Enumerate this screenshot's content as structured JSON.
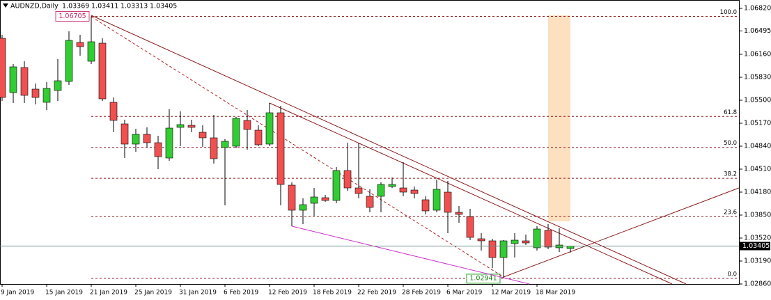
{
  "chart_data": {
    "type": "candlestick",
    "title": "AUDNZD,Daily",
    "categories": [
      "9 Jan 2019",
      null,
      null,
      null,
      "15 Jan 2019",
      null,
      null,
      null,
      "21 Jan 2019",
      null,
      null,
      null,
      "25 Jan 2019",
      null,
      null,
      null,
      "31 Jan 2019",
      null,
      null,
      null,
      "6 Feb 2019",
      null,
      null,
      null,
      "12 Feb 2019",
      null,
      null,
      null,
      "18 Feb 2019",
      null,
      null,
      null,
      "22 Feb 2019",
      null,
      null,
      null,
      "28 Feb 2019",
      null,
      null,
      null,
      "6 Mar 2019",
      null,
      null,
      null,
      "12 Mar 2019",
      null,
      null,
      null,
      "18 Mar 2019",
      null,
      null,
      null
    ],
    "open": [
      1.0639,
      1.0561,
      1.0597,
      1.0566,
      1.0547,
      1.0564,
      1.0577,
      1.0633,
      1.0606,
      1.0632,
      1.0547,
      1.0516,
      1.0487,
      1.0501,
      1.0489,
      1.0467,
      1.0511,
      1.0514,
      1.0504,
      1.0496,
      1.0482,
      1.0484,
      1.0521,
      1.0507,
      1.0487,
      1.0532,
      1.0428,
      1.0392,
      1.0402,
      1.041,
      1.0406,
      1.0449,
      1.0424,
      1.0412,
      1.0412,
      1.0426,
      1.0424,
      1.0421,
      1.0407,
      1.0392,
      1.0418,
      1.0389,
      1.0383,
      1.0351,
      1.0348,
      1.0324,
      1.0344,
      1.0348,
      1.0338,
      1.0363,
      1.0338,
      1.03369
    ],
    "high": [
      1.0644,
      1.0602,
      1.0606,
      1.0574,
      1.0576,
      1.0609,
      1.0649,
      1.0644,
      1.06705,
      1.0639,
      1.0554,
      1.0522,
      1.0509,
      1.0511,
      1.0499,
      1.0537,
      1.0534,
      1.0522,
      1.0514,
      1.0529,
      1.0494,
      1.0526,
      1.0536,
      1.0514,
      1.0546,
      1.0542,
      1.0432,
      1.0409,
      1.0424,
      1.0414,
      1.0454,
      1.0489,
      1.0489,
      1.0422,
      1.0432,
      1.0439,
      1.0461,
      1.0426,
      1.0412,
      1.0436,
      1.0434,
      1.0398,
      1.0394,
      1.0359,
      1.0351,
      1.0349,
      1.0359,
      1.0357,
      1.0369,
      1.0372,
      1.0366,
      1.03411
    ],
    "low": [
      1.0549,
      1.0546,
      1.0546,
      1.0544,
      1.0536,
      1.0549,
      1.0572,
      1.0614,
      1.0602,
      1.0549,
      1.0504,
      1.0467,
      1.0476,
      1.0482,
      1.0451,
      1.0463,
      1.0484,
      1.0504,
      1.0483,
      1.0459,
      1.0399,
      1.0481,
      1.0479,
      1.0484,
      1.0484,
      1.0399,
      1.0369,
      1.0372,
      1.0384,
      1.0404,
      1.0402,
      1.042,
      1.0409,
      1.0389,
      1.0389,
      1.0424,
      1.0412,
      1.0409,
      1.0386,
      1.0389,
      1.0359,
      1.0374,
      1.0349,
      1.0334,
      1.0309,
      1.02941,
      1.0324,
      1.0342,
      1.0334,
      1.0336,
      1.0332,
      1.03313
    ],
    "close": [
      1.0554,
      1.0598,
      1.0557,
      1.0554,
      1.0567,
      1.0578,
      1.0636,
      1.0627,
      1.0634,
      1.0552,
      1.0521,
      1.0487,
      1.0501,
      1.0489,
      1.0469,
      1.051,
      1.0515,
      1.0511,
      1.0496,
      1.0466,
      1.0491,
      1.0524,
      1.0508,
      1.0486,
      1.0532,
      1.0429,
      1.0392,
      1.04,
      1.0411,
      1.0406,
      1.0449,
      1.0424,
      1.0416,
      1.0396,
      1.0429,
      1.0429,
      1.0418,
      1.0416,
      1.0391,
      1.0422,
      1.0389,
      1.0386,
      1.0353,
      1.0348,
      1.0324,
      1.0348,
      1.0349,
      1.0345,
      1.0365,
      1.0339,
      1.0342,
      1.03405
    ],
    "up_color": "#32cd32",
    "down_color": "#f05050",
    "ylim": [
      1.0286,
      1.0694
    ],
    "yticks": [
      {
        "value": 1.0682,
        "label": "1.06820"
      },
      1.06495,
      {
        "value": 1.0616,
        "label": "1.06160"
      },
      {
        "value": 1.0583,
        "label": "1.05830"
      },
      {
        "value": 1.055,
        "label": "1.05500"
      },
      {
        "value": 1.0517,
        "label": "1.05170"
      },
      {
        "value": 1.0484,
        "label": "1.04840"
      },
      {
        "value": 1.0451,
        "label": "1.04510"
      },
      {
        "value": 1.0418,
        "label": "1.04180"
      },
      {
        "value": 1.0385,
        "label": "1.03850"
      },
      {
        "value": 1.0352,
        "label": "1.03520"
      },
      {
        "value": 1.0319,
        "label": "1.03190"
      },
      {
        "value": 1.0286,
        "label": "1.02860"
      }
    ],
    "fibonacci": {
      "high": 1.06705,
      "low": 1.02941,
      "levels": [
        {
          "value": 100,
          "label": "100.0"
        },
        61.8,
        {
          "value": 50,
          "label": "50.0"
        },
        38.2,
        23.6,
        {
          "value": 0,
          "label": "0.0"
        }
      ]
    }
  }
}
